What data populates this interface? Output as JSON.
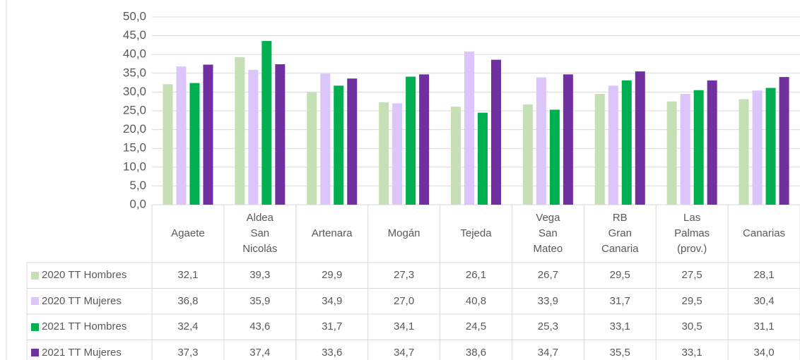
{
  "chart_data": {
    "type": "bar",
    "categories": [
      "Agaete",
      "Aldea San Nicolás",
      "Artenara",
      "Mogán",
      "Tejeda",
      "Vega San Mateo",
      "RB Gran Canaria",
      "Las Palmas (prov.)",
      "Canarias"
    ],
    "series": [
      {
        "name": "2020 TT Hombres",
        "color": "#c5e0b4",
        "values": [
          32.1,
          39.3,
          29.9,
          27.3,
          26.1,
          26.7,
          29.5,
          27.5,
          28.1
        ],
        "value_labels": [
          "32,1",
          "39,3",
          "29,9",
          "27,3",
          "26,1",
          "26,7",
          "29,5",
          "27,5",
          "28,1"
        ]
      },
      {
        "name": "2020 TT Mujeres",
        "color": "#dcc5fa",
        "values": [
          36.8,
          35.9,
          34.9,
          27.0,
          40.8,
          33.9,
          31.7,
          29.5,
          30.4
        ],
        "value_labels": [
          "36,8",
          "35,9",
          "34,9",
          "27,0",
          "40,8",
          "33,9",
          "31,7",
          "29,5",
          "30,4"
        ]
      },
      {
        "name": "2021 TT Hombres",
        "color": "#00b050",
        "values": [
          32.4,
          43.6,
          31.7,
          34.1,
          24.5,
          25.3,
          33.1,
          30.5,
          31.1
        ],
        "value_labels": [
          "32,4",
          "43,6",
          "31,7",
          "34,1",
          "24,5",
          "25,3",
          "33,1",
          "30,5",
          "31,1"
        ]
      },
      {
        "name": "2021 TT Mujeres",
        "color": "#7030a0",
        "values": [
          37.3,
          37.4,
          33.6,
          34.7,
          38.6,
          34.7,
          35.5,
          33.1,
          34.0
        ],
        "value_labels": [
          "37,3",
          "37,4",
          "33,6",
          "34,7",
          "38,6",
          "34,7",
          "35,5",
          "33,1",
          "34,0"
        ]
      }
    ],
    "ylim": [
      0,
      50
    ],
    "yticks": [
      {
        "value": 0,
        "label": "0,0"
      },
      {
        "value": 5,
        "label": "5,0"
      },
      {
        "value": 10,
        "label": "10,0"
      },
      {
        "value": 15,
        "label": "15,0"
      },
      {
        "value": 20,
        "label": "20,0"
      },
      {
        "value": 25,
        "label": "25,0"
      },
      {
        "value": 30,
        "label": "30,0"
      },
      {
        "value": 35,
        "label": "35,0"
      },
      {
        "value": 40,
        "label": "40,0"
      },
      {
        "value": 45,
        "label": "45,0"
      },
      {
        "value": 50,
        "label": "50,0"
      }
    ],
    "grid": true
  }
}
